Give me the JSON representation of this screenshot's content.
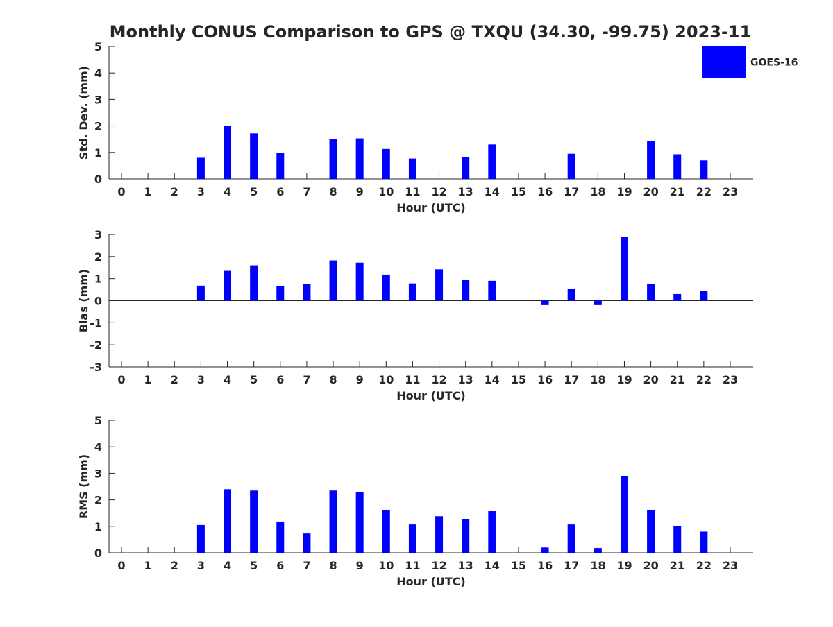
{
  "title": "Monthly CONUS Comparison to GPS @ TXQU (34.30, -99.75) 2023-11",
  "legend": {
    "label": "GOES-16",
    "color": "#0000ff"
  },
  "colors": {
    "bar": "#0000ff",
    "axis": "#262626"
  },
  "chart_data": [
    {
      "type": "bar",
      "name": "std-dev",
      "ylabel": "Std. Dev. (mm)",
      "xlabel": "Hour (UTC)",
      "ylim": [
        0,
        5
      ],
      "yticks": [
        0,
        1,
        2,
        3,
        4,
        5
      ],
      "categories": [
        "0",
        "1",
        "2",
        "3",
        "4",
        "5",
        "6",
        "7",
        "8",
        "9",
        "10",
        "11",
        "12",
        "13",
        "14",
        "15",
        "16",
        "17",
        "18",
        "19",
        "20",
        "21",
        "22",
        "23"
      ],
      "values": [
        null,
        null,
        null,
        0.8,
        2.0,
        1.72,
        0.97,
        null,
        1.5,
        1.53,
        1.13,
        0.77,
        null,
        0.82,
        1.3,
        null,
        null,
        0.95,
        null,
        null,
        1.43,
        0.93,
        0.7,
        null
      ],
      "zero_line": false
    },
    {
      "type": "bar",
      "name": "bias",
      "ylabel": "Bias (mm)",
      "xlabel": "Hour (UTC)",
      "ylim": [
        -3,
        3
      ],
      "yticks": [
        -3,
        -2,
        -1,
        0,
        1,
        2,
        3
      ],
      "categories": [
        "0",
        "1",
        "2",
        "3",
        "4",
        "5",
        "6",
        "7",
        "8",
        "9",
        "10",
        "11",
        "12",
        "13",
        "14",
        "15",
        "16",
        "17",
        "18",
        "19",
        "20",
        "21",
        "22",
        "23"
      ],
      "values": [
        null,
        null,
        null,
        0.68,
        1.35,
        1.6,
        0.65,
        0.75,
        1.82,
        1.72,
        1.18,
        0.78,
        1.42,
        0.95,
        0.9,
        null,
        -0.2,
        0.52,
        -0.2,
        2.9,
        0.75,
        0.3,
        0.43,
        null
      ],
      "zero_line": true
    },
    {
      "type": "bar",
      "name": "rms",
      "ylabel": "RMS (mm)",
      "xlabel": "Hour (UTC)",
      "ylim": [
        0,
        5
      ],
      "yticks": [
        0,
        1,
        2,
        3,
        4,
        5
      ],
      "categories": [
        "0",
        "1",
        "2",
        "3",
        "4",
        "5",
        "6",
        "7",
        "8",
        "9",
        "10",
        "11",
        "12",
        "13",
        "14",
        "15",
        "16",
        "17",
        "18",
        "19",
        "20",
        "21",
        "22",
        "23"
      ],
      "values": [
        null,
        null,
        null,
        1.05,
        2.4,
        2.35,
        1.18,
        0.73,
        2.35,
        2.3,
        1.62,
        1.07,
        1.38,
        1.27,
        1.57,
        null,
        0.2,
        1.07,
        0.18,
        2.9,
        1.62,
        1.0,
        0.8,
        null
      ],
      "zero_line": false
    }
  ]
}
